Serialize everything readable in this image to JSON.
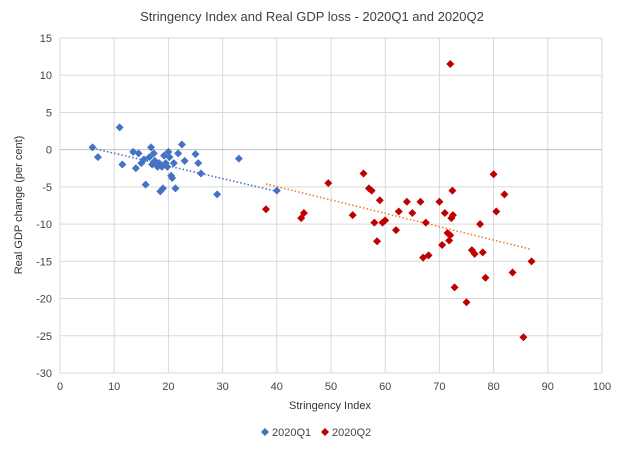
{
  "chart_data": {
    "type": "scatter",
    "title": "Stringency  Index and Real GDP loss - 2020Q1  and  2020Q2",
    "xlabel": "Stringency Index",
    "ylabel": "Real GDP change (per cent)",
    "xlim": [
      0,
      100
    ],
    "ylim": [
      -30,
      15
    ],
    "xticks": [
      0,
      10,
      20,
      30,
      40,
      50,
      60,
      70,
      80,
      90,
      100
    ],
    "yticks": [
      15,
      10,
      5,
      0,
      -5,
      -10,
      -15,
      -20,
      -25,
      -30
    ],
    "grid": true,
    "legend_position": "bottom",
    "series": [
      {
        "name": "2020Q1",
        "color": "#4472c4",
        "marker": "diamond",
        "trendline": {
          "color": "#4472c4",
          "x": [
            6,
            40
          ],
          "y": [
            0.2,
            -5.6
          ]
        },
        "points": [
          [
            6,
            0.3
          ],
          [
            7,
            -1
          ],
          [
            11,
            3
          ],
          [
            11.5,
            -2
          ],
          [
            13.5,
            -0.3
          ],
          [
            14,
            -2.5
          ],
          [
            14.5,
            -0.5
          ],
          [
            15,
            -1.8
          ],
          [
            15.5,
            -1.3
          ],
          [
            15.8,
            -4.7
          ],
          [
            16.5,
            -1
          ],
          [
            16.8,
            0.3
          ],
          [
            17,
            -2
          ],
          [
            17.3,
            -0.5
          ],
          [
            17.5,
            -1.5
          ],
          [
            18,
            -2.3
          ],
          [
            18.3,
            -1.8
          ],
          [
            18.5,
            -5.6
          ],
          [
            18.8,
            -2.3
          ],
          [
            19,
            -5.2
          ],
          [
            19.2,
            -0.8
          ],
          [
            19.5,
            -1.8
          ],
          [
            19.8,
            -2.3
          ],
          [
            20,
            -0.3
          ],
          [
            20.2,
            -1
          ],
          [
            20.5,
            -3.5
          ],
          [
            20.7,
            -3.8
          ],
          [
            21,
            -1.8
          ],
          [
            21.3,
            -5.2
          ],
          [
            21.8,
            -0.5
          ],
          [
            22.5,
            0.7
          ],
          [
            23,
            -1.5
          ],
          [
            25,
            -0.6
          ],
          [
            25.5,
            -1.8
          ],
          [
            26,
            -3.2
          ],
          [
            29,
            -6
          ],
          [
            33,
            -1.2
          ],
          [
            40,
            -5.5
          ]
        ]
      },
      {
        "name": "2020Q2",
        "color": "#c00000",
        "marker": "diamond",
        "trendline": {
          "color": "#ed7d31",
          "x": [
            38,
            87
          ],
          "y": [
            -4.6,
            -13.4
          ]
        },
        "points": [
          [
            38,
            -8
          ],
          [
            44.5,
            -9.2
          ],
          [
            45,
            -8.5
          ],
          [
            49.5,
            -4.5
          ],
          [
            54,
            -8.8
          ],
          [
            56,
            -3.2
          ],
          [
            57,
            -5.2
          ],
          [
            57.5,
            -5.5
          ],
          [
            58,
            -9.8
          ],
          [
            58.5,
            -12.3
          ],
          [
            59,
            -6.8
          ],
          [
            59.5,
            -9.8
          ],
          [
            60,
            -9.5
          ],
          [
            62,
            -10.8
          ],
          [
            62.5,
            -8.3
          ],
          [
            64,
            -7
          ],
          [
            65,
            -8.5
          ],
          [
            66.5,
            -7
          ],
          [
            67,
            -14.5
          ],
          [
            67.5,
            -9.8
          ],
          [
            68,
            -14.2
          ],
          [
            70,
            -7
          ],
          [
            70.5,
            -12.8
          ],
          [
            71,
            -8.5
          ],
          [
            71.5,
            -11.2
          ],
          [
            71.8,
            -12.2
          ],
          [
            72,
            -11.5
          ],
          [
            72.2,
            -9.2
          ],
          [
            72.4,
            -5.5
          ],
          [
            72.5,
            -8.8
          ],
          [
            72.8,
            -18.5
          ],
          [
            75,
            -20.5
          ],
          [
            76,
            -13.5
          ],
          [
            76.5,
            -14
          ],
          [
            77.5,
            -10
          ],
          [
            78,
            -13.8
          ],
          [
            78.5,
            -17.2
          ],
          [
            80,
            -3.3
          ],
          [
            80.5,
            -8.3
          ],
          [
            82,
            -6
          ],
          [
            83.5,
            -16.5
          ],
          [
            85.5,
            -25.2
          ],
          [
            87,
            -15
          ],
          [
            72,
            11.5
          ]
        ]
      }
    ]
  }
}
